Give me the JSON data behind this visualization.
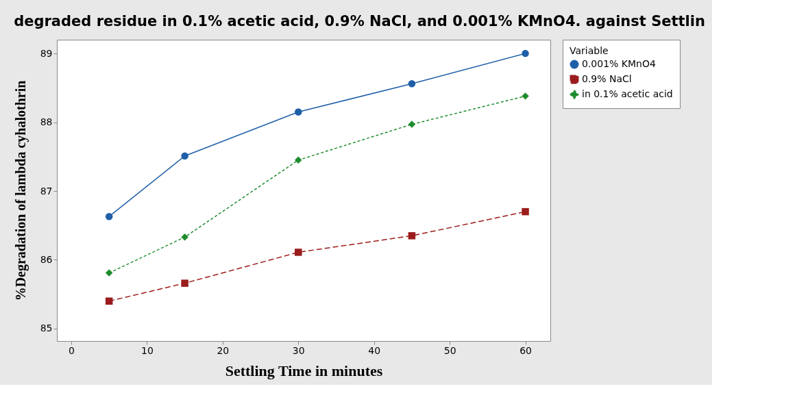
{
  "chart_data": {
    "type": "line",
    "title": "degraded residue in 0.1% acetic acid, 0.9% NaCl, and 0.001% KMnO4. against Settlin",
    "xlabel": "Settling Time in minutes",
    "ylabel": "%Degradation of lambda cyhalothrin",
    "legend_title": "Variable",
    "x": [
      5,
      15,
      30,
      45,
      60
    ],
    "series": [
      {
        "name": "0.001% KMnO4",
        "color": "#1f5fa8",
        "marker": "circle",
        "line_style": "solid",
        "values": [
          86.63,
          87.51,
          88.15,
          88.56,
          89.0
        ]
      },
      {
        "name": "0.9% NaCl",
        "color": "#9b1c1c",
        "marker": "square",
        "line_style": "dashed",
        "values": [
          85.4,
          85.66,
          86.11,
          86.35,
          86.7
        ]
      },
      {
        "name": "in 0.1% acetic acid",
        "color": "#1e8c2e",
        "marker": "diamond",
        "line_style": "dotted",
        "values": [
          85.81,
          86.33,
          87.45,
          87.97,
          88.38
        ]
      }
    ],
    "xlim": [
      -1.9,
      63.3
    ],
    "ylim": [
      84.82,
      89.2
    ],
    "xticks": [
      0,
      10,
      20,
      30,
      40,
      50,
      60
    ],
    "yticks": [
      85,
      86,
      87,
      88,
      89
    ],
    "grid": false,
    "legend": "top right"
  }
}
